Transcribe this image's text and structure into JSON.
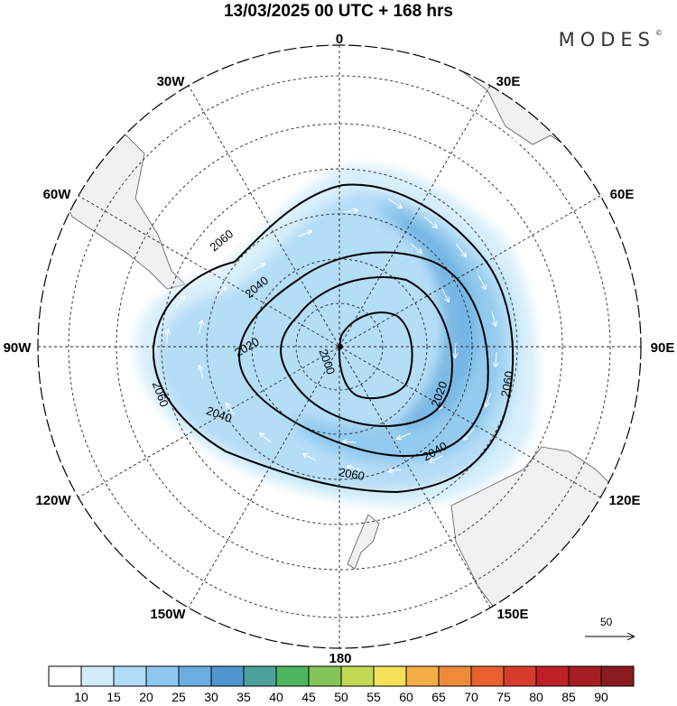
{
  "title": "13/03/2025  00 UTC  + 168 hrs",
  "brand": "MODES",
  "brand_mark": "©",
  "longitude_labels": {
    "lon_0": "0",
    "lon_30e": "30E",
    "lon_60e": "60E",
    "lon_90e": "90E",
    "lon_120e": "120E",
    "lon_150e": "150E",
    "lon_180": "180",
    "lon_150w": "150W",
    "lon_120w": "120W",
    "lon_90w": "90W",
    "lon_60w": "60W",
    "lon_30w": "30W"
  },
  "contours": {
    "c2000": "2000",
    "c2020a": "2020",
    "c2020b": "2020",
    "c2040a": "2040",
    "c2040b": "2040",
    "c2040c": "2040",
    "c2060a": "2060",
    "c2060b": "2060",
    "c2060c": "2060",
    "c2060d": "2060"
  },
  "reference_vector": "50",
  "colorbar": {
    "ticks": [
      "10",
      "15",
      "20",
      "25",
      "30",
      "35",
      "40",
      "45",
      "50",
      "55",
      "60",
      "65",
      "70",
      "75",
      "80",
      "85",
      "90"
    ],
    "colors": [
      "#ffffff",
      "#d4edfb",
      "#b0dcf6",
      "#8fc8ee",
      "#6aaee0",
      "#4f95cf",
      "#4aa29a",
      "#4db560",
      "#82c556",
      "#c1da52",
      "#f5e05a",
      "#f4ac45",
      "#ef8a39",
      "#e8612f",
      "#d83b2b",
      "#bf2026",
      "#a81d24",
      "#8b1a1e"
    ]
  },
  "map": {
    "projection": "south polar stereographic",
    "shading": "wind speed",
    "land_color": "#f2f2f2",
    "contour_color": "#000000"
  }
}
